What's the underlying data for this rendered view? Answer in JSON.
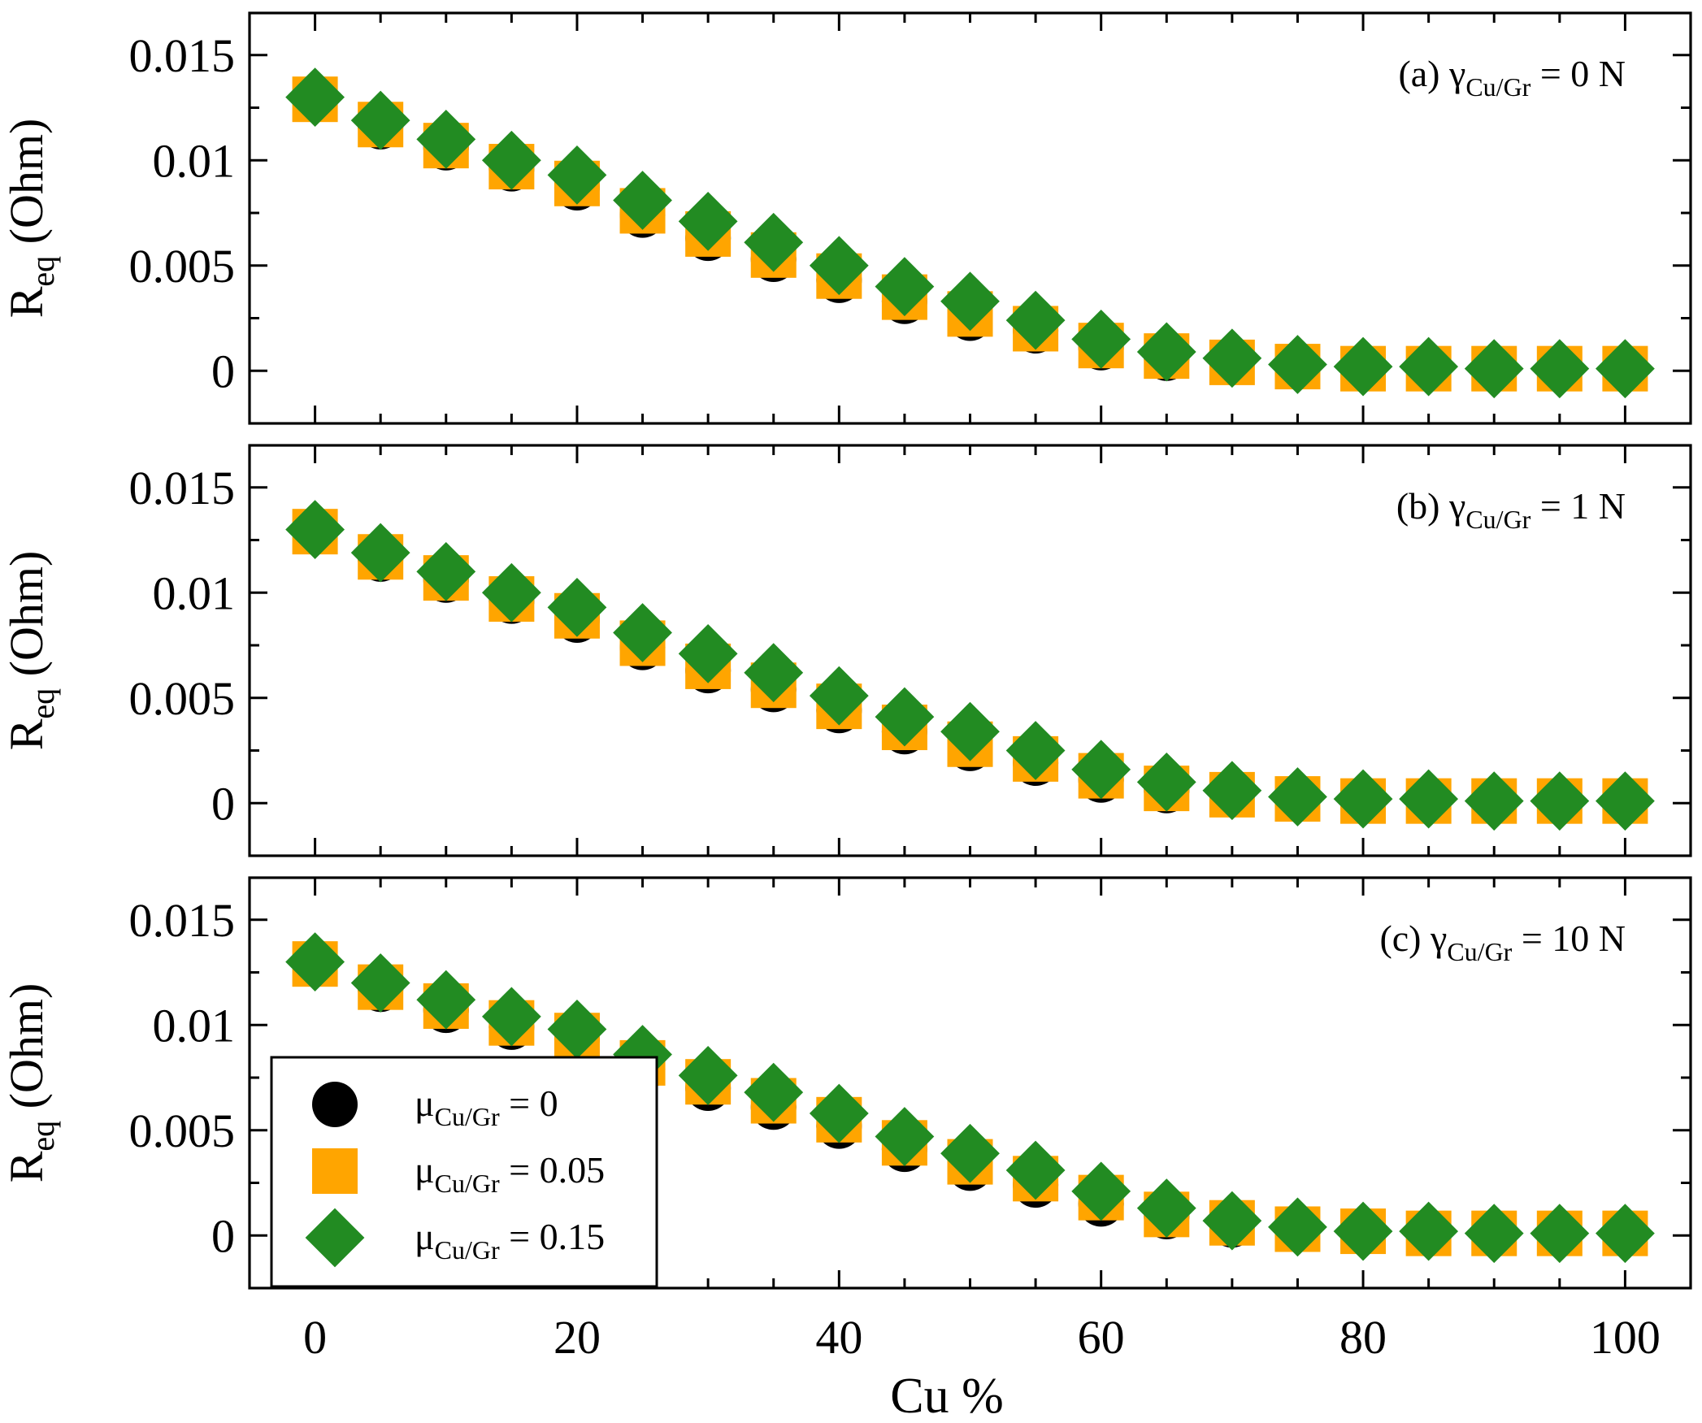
{
  "chart_data": {
    "type": "scatter",
    "xlabel": "Cu %",
    "ylabel": "R",
    "ylabel_sub": "eq",
    "ylabel_unit": "(Ohm)",
    "xlim": [
      -5,
      105
    ],
    "ylim": [
      -0.0025,
      0.017
    ],
    "x_ticks": [
      0,
      20,
      40,
      60,
      80,
      100
    ],
    "y_ticks": [
      0,
      0.005,
      0.01,
      0.015
    ],
    "x_tick_labels": [
      "0",
      "20",
      "40",
      "60",
      "80",
      "100"
    ],
    "y_tick_labels": [
      "0",
      "0.005",
      "0.01",
      "0.015"
    ],
    "colors": {
      "mu0": "#000000",
      "mu005": "#ffa500",
      "mu015": "#228b22"
    },
    "legend": [
      {
        "prefix": "μ",
        "sub": "Cu/Gr",
        "suffix": " = 0",
        "marker": "circle",
        "color": "#000000"
      },
      {
        "prefix": "μ",
        "sub": "Cu/Gr",
        "suffix": " = 0.05",
        "marker": "square",
        "color": "#ffa500"
      },
      {
        "prefix": "μ",
        "sub": "Cu/Gr",
        "suffix": " = 0.15",
        "marker": "diamond",
        "color": "#228b22"
      }
    ],
    "x": [
      0,
      5,
      10,
      15,
      20,
      25,
      30,
      35,
      40,
      45,
      50,
      55,
      60,
      65,
      70,
      75,
      80,
      85,
      90,
      95,
      100
    ],
    "panels": [
      {
        "label_prefix": "(a) γ",
        "label_sub": "Cu/Gr",
        "label_suffix": " = 0 N",
        "series": [
          {
            "name": "μCu/Gr = 0",
            "values": [
              0.0129,
              0.0116,
              0.0106,
              0.0096,
              0.0087,
              0.0074,
              0.0063,
              0.0053,
              0.0043,
              0.0033,
              0.0025,
              0.0019,
              0.0011,
              0.0006,
              0.0004,
              0.0002,
              0.0001,
              0.0001,
              0.0001,
              0.0001,
              0.0001
            ]
          },
          {
            "name": "μCu/Gr = 0.05",
            "values": [
              0.0129,
              0.0117,
              0.0107,
              0.0097,
              0.0089,
              0.0076,
              0.0065,
              0.0055,
              0.0045,
              0.0035,
              0.0027,
              0.002,
              0.0012,
              0.0007,
              0.0004,
              0.0002,
              0.0001,
              0.0001,
              0.0001,
              0.0001,
              0.0001
            ]
          },
          {
            "name": "μCu/Gr = 0.15",
            "values": [
              0.013,
              0.0119,
              0.011,
              0.01,
              0.0093,
              0.0081,
              0.0071,
              0.0061,
              0.005,
              0.004,
              0.0033,
              0.0024,
              0.0015,
              0.0009,
              0.0006,
              0.0003,
              0.0002,
              0.0002,
              0.0001,
              0.0001,
              0.0001
            ]
          }
        ]
      },
      {
        "label_prefix": "(b) γ",
        "label_sub": "Cu/Gr",
        "label_suffix": " = 1 N",
        "series": [
          {
            "name": "μCu/Gr = 0",
            "values": [
              0.0129,
              0.0116,
              0.0106,
              0.0096,
              0.0087,
              0.0074,
              0.0063,
              0.0054,
              0.0044,
              0.0034,
              0.0026,
              0.0019,
              0.0011,
              0.0006,
              0.0004,
              0.0002,
              0.0001,
              0.0001,
              0.0001,
              0.0001,
              0.0001
            ]
          },
          {
            "name": "μCu/Gr = 0.05",
            "values": [
              0.0129,
              0.0117,
              0.0107,
              0.0097,
              0.0089,
              0.0076,
              0.0065,
              0.0056,
              0.0046,
              0.0036,
              0.0028,
              0.0021,
              0.0013,
              0.0007,
              0.0004,
              0.0002,
              0.0001,
              0.0001,
              0.0001,
              0.0001,
              0.0001
            ]
          },
          {
            "name": "μCu/Gr = 0.15",
            "values": [
              0.013,
              0.0119,
              0.011,
              0.01,
              0.0093,
              0.0081,
              0.0071,
              0.0062,
              0.0051,
              0.0041,
              0.0034,
              0.0025,
              0.0016,
              0.001,
              0.0006,
              0.0003,
              0.0002,
              0.0002,
              0.0001,
              0.0001,
              0.0001
            ]
          }
        ]
      },
      {
        "label_prefix": "(c) γ",
        "label_sub": "Cu/Gr",
        "label_suffix": " = 10 N",
        "series": [
          {
            "name": "μCu/Gr = 0",
            "values": [
              0.0129,
              0.0117,
              0.0107,
              0.0099,
              0.0093,
              0.0079,
              0.007,
              0.0061,
              0.0052,
              0.0041,
              0.0032,
              0.0024,
              0.0015,
              0.0009,
              0.0005,
              0.0003,
              0.0002,
              0.0001,
              0.0001,
              0.0001,
              0.0001
            ]
          },
          {
            "name": "μCu/Gr = 0.05",
            "values": [
              0.0129,
              0.0118,
              0.0109,
              0.0101,
              0.0095,
              0.0082,
              0.0073,
              0.0064,
              0.0055,
              0.0044,
              0.0035,
              0.0027,
              0.0018,
              0.001,
              0.0006,
              0.0003,
              0.0002,
              0.0001,
              0.0001,
              0.0001,
              0.0001
            ]
          },
          {
            "name": "μCu/Gr = 0.15",
            "values": [
              0.013,
              0.012,
              0.0112,
              0.0104,
              0.0098,
              0.0086,
              0.0076,
              0.0068,
              0.0058,
              0.0047,
              0.0039,
              0.0031,
              0.0021,
              0.0013,
              0.0007,
              0.0004,
              0.0002,
              0.0002,
              0.0001,
              0.0001,
              0.0001
            ]
          }
        ]
      }
    ]
  }
}
